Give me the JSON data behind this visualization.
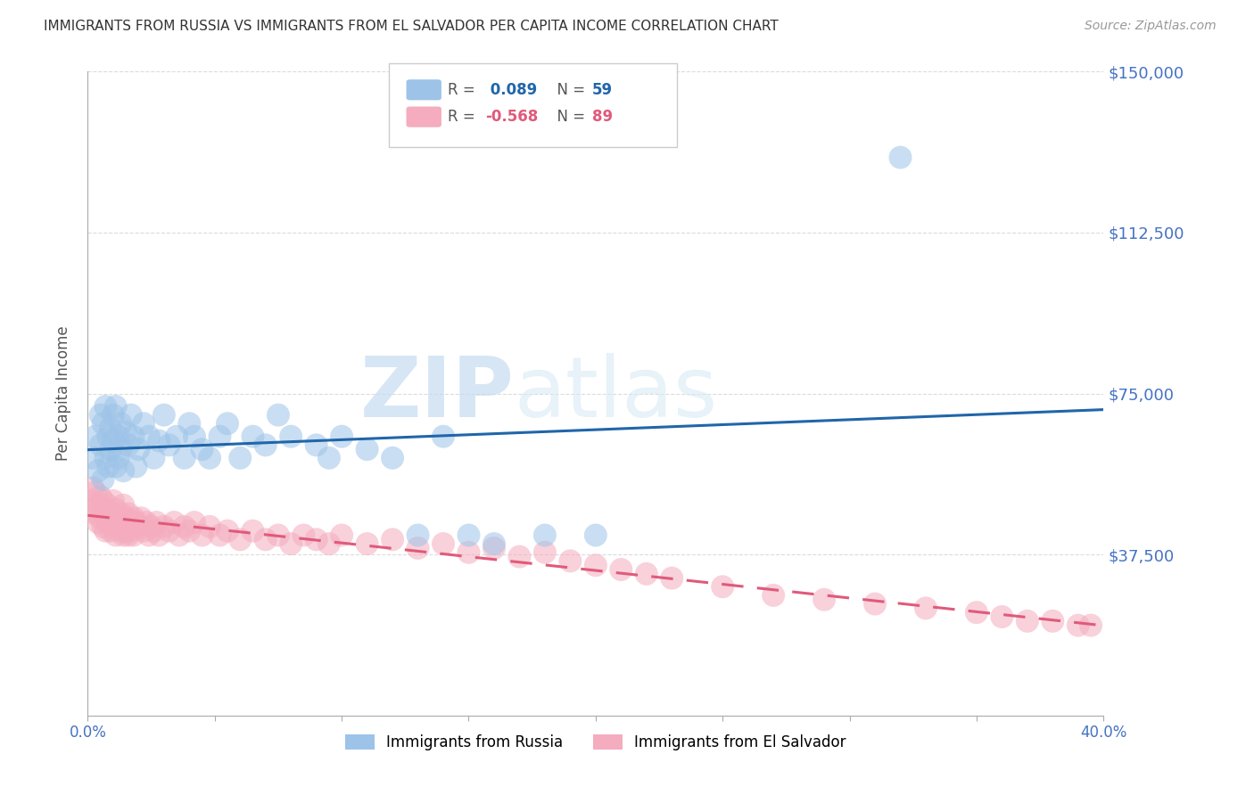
{
  "title": "IMMIGRANTS FROM RUSSIA VS IMMIGRANTS FROM EL SALVADOR PER CAPITA INCOME CORRELATION CHART",
  "source": "Source: ZipAtlas.com",
  "ylabel": "Per Capita Income",
  "xlim": [
    0.0,
    0.4
  ],
  "ylim": [
    0,
    150000
  ],
  "yticks": [
    0,
    37500,
    75000,
    112500,
    150000
  ],
  "ytick_labels": [
    "",
    "$37,500",
    "$75,000",
    "$112,500",
    "$150,000"
  ],
  "xtick_left_label": "0.0%",
  "xtick_right_label": "40.0%",
  "russia_R": 0.089,
  "russia_N": 59,
  "salvador_R": -0.568,
  "salvador_N": 89,
  "blue_color": "#9DC3E8",
  "pink_color": "#F4ACBE",
  "blue_line_color": "#2066AA",
  "pink_line_color": "#E05A7A",
  "watermark_zip": "ZIP",
  "watermark_atlas": "atlas",
  "background_color": "#FFFFFF",
  "grid_color": "#CCCCCC",
  "axis_color": "#AAAAAA",
  "title_color": "#333333",
  "ylabel_color": "#555555",
  "ytick_label_color": "#4472C4",
  "xtick_label_color": "#4472C4",
  "russia_x": [
    0.002,
    0.003,
    0.004,
    0.005,
    0.005,
    0.006,
    0.006,
    0.007,
    0.007,
    0.008,
    0.008,
    0.009,
    0.009,
    0.01,
    0.01,
    0.011,
    0.011,
    0.012,
    0.012,
    0.013,
    0.013,
    0.014,
    0.015,
    0.016,
    0.017,
    0.018,
    0.019,
    0.02,
    0.022,
    0.024,
    0.026,
    0.028,
    0.03,
    0.032,
    0.035,
    0.038,
    0.04,
    0.042,
    0.045,
    0.048,
    0.052,
    0.055,
    0.06,
    0.065,
    0.07,
    0.075,
    0.08,
    0.09,
    0.095,
    0.1,
    0.11,
    0.12,
    0.13,
    0.14,
    0.15,
    0.16,
    0.18,
    0.2,
    0.32
  ],
  "russia_y": [
    60000,
    65000,
    57000,
    63000,
    70000,
    68000,
    55000,
    72000,
    60000,
    65000,
    58000,
    62000,
    67000,
    64000,
    70000,
    58000,
    72000,
    60000,
    65000,
    62000,
    68000,
    57000,
    66000,
    63000,
    70000,
    65000,
    58000,
    62000,
    68000,
    65000,
    60000,
    64000,
    70000,
    63000,
    65000,
    60000,
    68000,
    65000,
    62000,
    60000,
    65000,
    68000,
    60000,
    65000,
    63000,
    70000,
    65000,
    63000,
    60000,
    65000,
    62000,
    60000,
    42000,
    65000,
    42000,
    40000,
    42000,
    42000,
    130000
  ],
  "salvador_x": [
    0.001,
    0.002,
    0.002,
    0.003,
    0.003,
    0.004,
    0.004,
    0.005,
    0.005,
    0.006,
    0.006,
    0.007,
    0.007,
    0.008,
    0.008,
    0.009,
    0.009,
    0.01,
    0.01,
    0.011,
    0.011,
    0.012,
    0.012,
    0.013,
    0.013,
    0.014,
    0.014,
    0.015,
    0.015,
    0.016,
    0.016,
    0.017,
    0.017,
    0.018,
    0.018,
    0.019,
    0.02,
    0.021,
    0.022,
    0.023,
    0.024,
    0.025,
    0.026,
    0.027,
    0.028,
    0.03,
    0.032,
    0.034,
    0.036,
    0.038,
    0.04,
    0.042,
    0.045,
    0.048,
    0.052,
    0.055,
    0.06,
    0.065,
    0.07,
    0.075,
    0.08,
    0.085,
    0.09,
    0.095,
    0.1,
    0.11,
    0.12,
    0.13,
    0.14,
    0.15,
    0.16,
    0.17,
    0.18,
    0.19,
    0.2,
    0.21,
    0.22,
    0.23,
    0.25,
    0.27,
    0.29,
    0.31,
    0.33,
    0.35,
    0.36,
    0.37,
    0.38,
    0.39,
    0.395
  ],
  "salvador_y": [
    50000,
    48000,
    53000,
    47000,
    52000,
    49000,
    45000,
    51000,
    46000,
    50000,
    44000,
    48000,
    43000,
    49000,
    45000,
    47000,
    43000,
    50000,
    44000,
    48000,
    42000,
    46000,
    44000,
    47000,
    43000,
    49000,
    42000,
    46000,
    43000,
    47000,
    42000,
    45000,
    43000,
    46000,
    42000,
    45000,
    44000,
    46000,
    43000,
    45000,
    42000,
    44000,
    43000,
    45000,
    42000,
    44000,
    43000,
    45000,
    42000,
    44000,
    43000,
    45000,
    42000,
    44000,
    42000,
    43000,
    41000,
    43000,
    41000,
    42000,
    40000,
    42000,
    41000,
    40000,
    42000,
    40000,
    41000,
    39000,
    40000,
    38000,
    39000,
    37000,
    38000,
    36000,
    35000,
    34000,
    33000,
    32000,
    30000,
    28000,
    27000,
    26000,
    25000,
    24000,
    23000,
    22000,
    22000,
    21000,
    21000
  ]
}
